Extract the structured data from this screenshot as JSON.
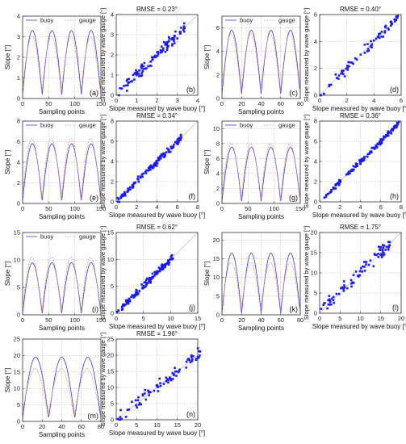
{
  "legend": {
    "buoy": "buoy",
    "gauge": "gauge"
  },
  "colors": {
    "buoy": "#3a3acc",
    "gauge": "#e89a9a",
    "points": "#1a1aff",
    "axis": "#333333",
    "grid": "#b0b0b0"
  },
  "labels": {
    "ts_x": "Sampling points",
    "ts_y": "Slope [°]",
    "sc_x": "Slope measured by wave buoy [°]",
    "sc_y": "Slope measured by wave gauge [°]"
  },
  "chart_data": [
    {
      "pair": "row1-left",
      "timeseries": {
        "panel": "(a)",
        "type": "line",
        "xlim": [
          0,
          150
        ],
        "ylim": [
          0,
          4
        ],
        "xticks": [
          0,
          50,
          100,
          150
        ],
        "yticks": [
          0,
          1,
          2,
          3,
          4
        ],
        "grid": true,
        "legend": "top",
        "series": [
          {
            "name": "buoy",
            "peaks": 4,
            "max": 3.3,
            "min": 0.2
          },
          {
            "name": "gauge",
            "peaks": 4,
            "max": 3.0,
            "min": 0.3
          }
        ]
      },
      "scatter": {
        "panel": "(b)",
        "type": "scatter",
        "title": "RMSE = 0.23°",
        "xlim": [
          0,
          4
        ],
        "ylim": [
          0,
          4
        ],
        "xticks": [
          0,
          1,
          2,
          3,
          4
        ],
        "yticks": [
          0,
          1,
          2,
          3,
          4
        ],
        "grid": true,
        "max": 3.4,
        "spread": 0.4,
        "n": 110
      }
    },
    {
      "pair": "row1-right",
      "timeseries": {
        "panel": "(c)",
        "type": "line",
        "xlim": [
          0,
          80
        ],
        "ylim": [
          0,
          7
        ],
        "xticks": [
          0,
          20,
          40,
          60,
          80
        ],
        "yticks": [
          0,
          2,
          4,
          6
        ],
        "grid": true,
        "legend": "top",
        "series": [
          {
            "name": "buoy",
            "peaks": 4,
            "max": 5.8,
            "min": 0.4
          },
          {
            "name": "gauge",
            "peaks": 4,
            "max": 5.5,
            "min": 0.5
          }
        ]
      },
      "scatter": {
        "panel": "(d)",
        "type": "scatter",
        "title": "RMSE = 0.40°",
        "xlim": [
          0,
          6
        ],
        "ylim": [
          0,
          6
        ],
        "xticks": [
          0,
          2,
          4,
          6
        ],
        "yticks": [
          0,
          2,
          4,
          6
        ],
        "grid": true,
        "max": 5.8,
        "spread": 0.55,
        "n": 70
      }
    },
    {
      "pair": "row2-left",
      "timeseries": {
        "panel": "(e)",
        "type": "line",
        "xlim": [
          0,
          150
        ],
        "ylim": [
          0,
          8
        ],
        "xticks": [
          0,
          50,
          100,
          150
        ],
        "yticks": [
          0,
          2,
          4,
          6,
          8
        ],
        "grid": true,
        "legend": "top",
        "series": [
          {
            "name": "buoy",
            "peaks": 4,
            "max": 5.8,
            "min": 0.3
          },
          {
            "name": "gauge",
            "peaks": 4,
            "max": 6.3,
            "min": 0.3
          }
        ]
      },
      "scatter": {
        "panel": "(f)",
        "type": "scatter",
        "title": "RMSE = 0.34°",
        "xlim": [
          0,
          8
        ],
        "ylim": [
          0,
          8
        ],
        "xticks": [
          0,
          2,
          4,
          6,
          8
        ],
        "yticks": [
          0,
          2,
          4,
          6,
          8
        ],
        "grid": true,
        "max": 6.5,
        "spread": 0.45,
        "n": 130
      }
    },
    {
      "pair": "row2-right",
      "timeseries": {
        "panel": "(g)",
        "type": "line",
        "xlim": [
          0,
          150
        ],
        "ylim": [
          0,
          11
        ],
        "xticks": [
          0,
          50,
          100,
          150
        ],
        "yticks": [
          0,
          2,
          4,
          6,
          8,
          10
        ],
        "grid": true,
        "legend": "top",
        "series": [
          {
            "name": "buoy",
            "peaks": 4,
            "max": 7.5,
            "min": 0.3
          },
          {
            "name": "gauge",
            "peaks": 4,
            "max": 8.0,
            "min": 0.4
          }
        ]
      },
      "scatter": {
        "panel": "(h)",
        "type": "scatter",
        "title": "RMSE = 0.36°",
        "xlim": [
          0,
          8
        ],
        "ylim": [
          0,
          8
        ],
        "xticks": [
          0,
          2,
          4,
          6,
          8
        ],
        "yticks": [
          0,
          2,
          4,
          6,
          8
        ],
        "grid": true,
        "max": 7.8,
        "spread": 0.35,
        "n": 140
      }
    },
    {
      "pair": "row3-left",
      "timeseries": {
        "panel": "(i)",
        "type": "line",
        "xlim": [
          0,
          150
        ],
        "ylim": [
          0,
          15
        ],
        "xticks": [
          0,
          50,
          100,
          150
        ],
        "yticks": [
          0,
          5,
          10,
          15
        ],
        "grid": true,
        "legend": "top",
        "series": [
          {
            "name": "buoy",
            "peaks": 4,
            "max": 9.5,
            "min": 0.3
          },
          {
            "name": "gauge",
            "peaks": 4,
            "max": 10.5,
            "min": 0.3
          }
        ]
      },
      "scatter": {
        "panel": "(j)",
        "type": "scatter",
        "title": "RMSE = 0.62°",
        "xlim": [
          0,
          15
        ],
        "ylim": [
          0,
          15
        ],
        "xticks": [
          0,
          5,
          10,
          15
        ],
        "yticks": [
          0,
          5,
          10,
          15
        ],
        "grid": true,
        "max": 10.5,
        "spread": 0.9,
        "n": 130
      }
    },
    {
      "pair": "row3-right",
      "timeseries": {
        "panel": "(k)",
        "type": "line",
        "xlim": [
          0,
          80
        ],
        "ylim": [
          0,
          22
        ],
        "xticks": [
          0,
          20,
          40,
          60,
          80
        ],
        "yticks": [
          0,
          5,
          10,
          15,
          20
        ],
        "grid": true,
        "legend": "none",
        "series": [
          {
            "name": "buoy",
            "peaks": 4,
            "max": 16.5,
            "min": 0.5
          },
          {
            "name": "gauge",
            "peaks": 4,
            "max": 14.0,
            "min": 1.0
          }
        ]
      },
      "scatter": {
        "panel": "(l)",
        "type": "scatter",
        "title": "RMSE = 1.75°",
        "xlim": [
          0,
          20
        ],
        "ylim": [
          0,
          20
        ],
        "xticks": [
          0,
          5,
          10,
          15,
          20
        ],
        "yticks": [
          0,
          5,
          10,
          15,
          20
        ],
        "grid": true,
        "max": 17.5,
        "spread": 2.6,
        "n": 80
      }
    },
    {
      "pair": "row4-left",
      "timeseries": {
        "panel": "(m)",
        "type": "line",
        "xlim": [
          0,
          80
        ],
        "ylim": [
          0,
          25
        ],
        "xticks": [
          0,
          20,
          40,
          60,
          80
        ],
        "yticks": [
          0,
          5,
          10,
          15,
          20,
          25
        ],
        "grid": true,
        "legend": "none",
        "series": [
          {
            "name": "buoy",
            "peaks": 3,
            "max": 19.5,
            "min": 1.0
          },
          {
            "name": "gauge",
            "peaks": 3,
            "max": 16.0,
            "min": 1.5
          }
        ]
      },
      "scatter": {
        "panel": "(n)",
        "type": "scatter",
        "title": "RMSE = 1.96°",
        "xlim": [
          0,
          20
        ],
        "ylim": [
          0,
          25
        ],
        "xticks": [
          0,
          5,
          10,
          15,
          20
        ],
        "yticks": [
          0,
          5,
          10,
          15,
          20,
          25
        ],
        "grid": true,
        "max": 21.0,
        "spread": 3.2,
        "n": 80
      }
    }
  ]
}
